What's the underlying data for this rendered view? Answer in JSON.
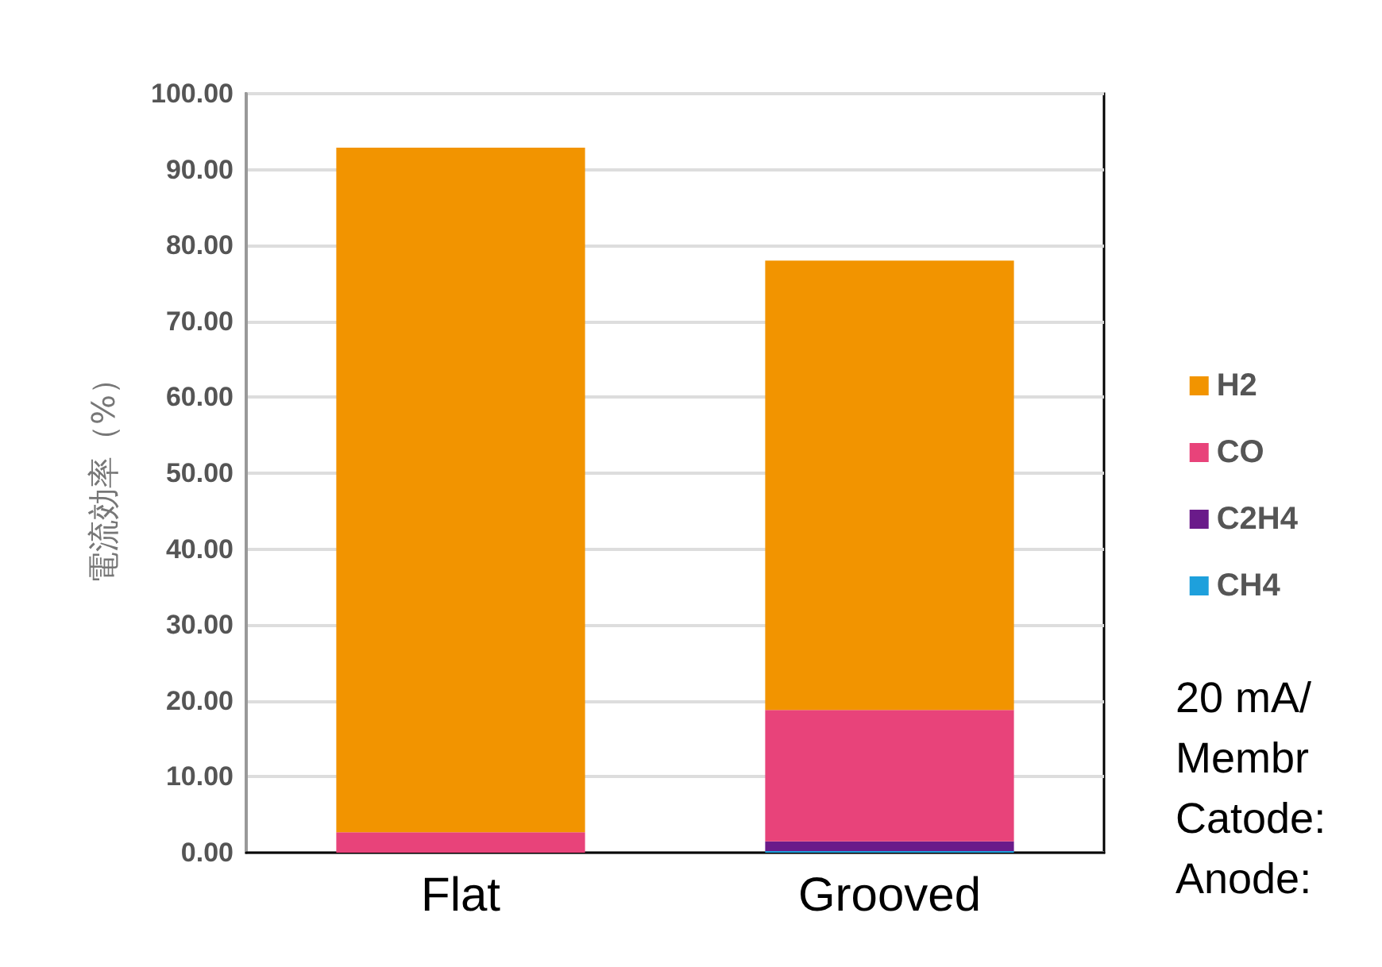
{
  "chart_data": {
    "type": "bar",
    "stacked": true,
    "ylabel": "電流効率（%）",
    "categories": [
      "Flat",
      "Grooved"
    ],
    "series": [
      {
        "name": "CH4",
        "color": "#1ea0dc",
        "values": [
          0,
          0.2
        ]
      },
      {
        "name": "C2H4",
        "color": "#6a1b8a",
        "values": [
          0,
          1.3
        ]
      },
      {
        "name": "CO",
        "color": "#e8437a",
        "values": [
          2.7,
          17.3
        ]
      },
      {
        "name": "H2",
        "color": "#f29400",
        "values": [
          90.2,
          59.2
        ]
      }
    ],
    "ylim": [
      0,
      100
    ],
    "yticks": [
      {
        "value": 0,
        "label": "0.00"
      },
      {
        "value": 10,
        "label": "10.00"
      },
      {
        "value": 20,
        "label": "20.00"
      },
      {
        "value": 30,
        "label": "30.00"
      },
      {
        "value": 40,
        "label": "40.00"
      },
      {
        "value": 50,
        "label": "50.00"
      },
      {
        "value": 60,
        "label": "60.00"
      },
      {
        "value": 70,
        "label": "70.00"
      },
      {
        "value": 80,
        "label": "80.00"
      },
      {
        "value": 90,
        "label": "90.00"
      },
      {
        "value": 100,
        "label": "100.00"
      }
    ],
    "grid": "y",
    "legend": "right",
    "annotations": [
      "20 mA/",
      "Membr",
      "Catode:",
      "Anode:"
    ]
  }
}
